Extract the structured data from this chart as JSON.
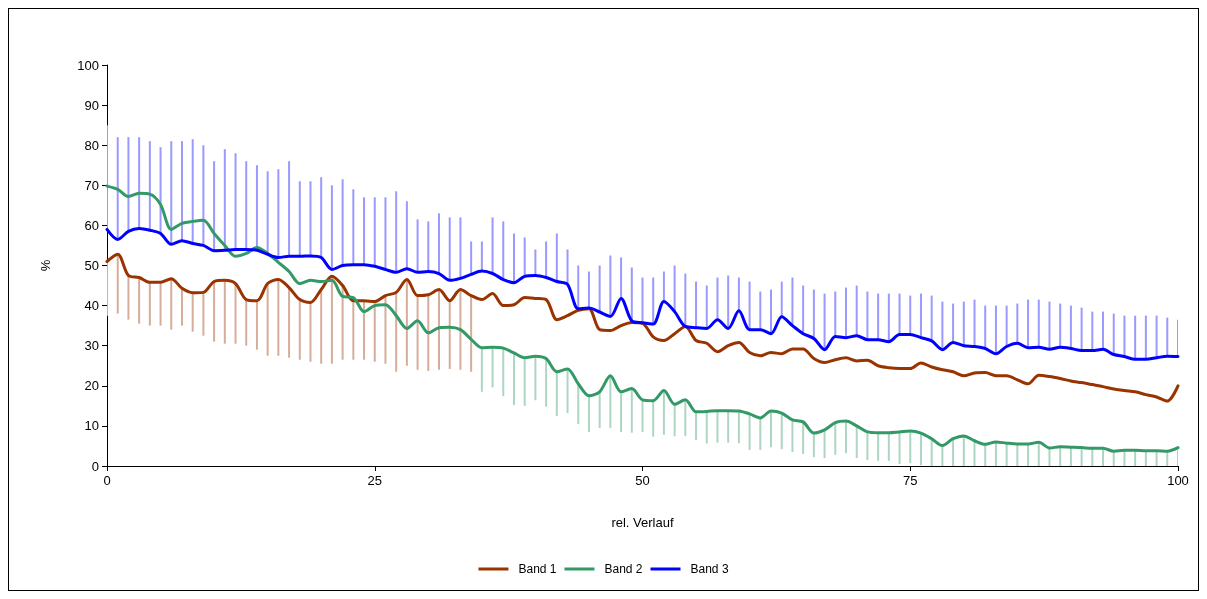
{
  "chart_data": {
    "type": "line",
    "xlabel": "rel. Verlauf",
    "ylabel": "%",
    "x": [
      0,
      1,
      2,
      3,
      4,
      5,
      6,
      7,
      8,
      9,
      10,
      11,
      12,
      13,
      14,
      15,
      16,
      17,
      18,
      19,
      20,
      21,
      22,
      23,
      24,
      25,
      26,
      27,
      28,
      29,
      30,
      31,
      32,
      33,
      34,
      35,
      36,
      37,
      38,
      39,
      40,
      41,
      42,
      43,
      44,
      45,
      46,
      47,
      48,
      49,
      50,
      51,
      52,
      53,
      54,
      55,
      56,
      57,
      58,
      59,
      60,
      61,
      62,
      63,
      64,
      65,
      66,
      67,
      68,
      69,
      70,
      71,
      72,
      73,
      74,
      75,
      76,
      77,
      78,
      79,
      80,
      81,
      82,
      83,
      84,
      85,
      86,
      87,
      88,
      89,
      90,
      91,
      92,
      93,
      94,
      95,
      96,
      97,
      98,
      99,
      100
    ],
    "series": [
      {
        "name": "Band 1",
        "color": "#993300",
        "values": [
          51,
          52.8,
          47.5,
          47,
          45.8,
          45.8,
          46.7,
          44.3,
          43.2,
          43.3,
          46,
          46.3,
          45.5,
          41.5,
          41.2,
          45.5,
          46.5,
          44.5,
          41.5,
          40.8,
          44,
          47.3,
          45,
          41.2,
          41.2,
          41,
          42.5,
          43.3,
          46.5,
          42.5,
          42.7,
          44,
          41.2,
          44,
          42.5,
          41.5,
          43,
          40,
          40.2,
          42,
          41.8,
          41.5,
          36.5,
          37.5,
          38.8,
          39.2,
          34,
          33.8,
          35,
          35.8,
          35.6,
          32.2,
          31.3,
          33,
          34.8,
          31.3,
          30.6,
          28.5,
          30,
          30.8,
          28.3,
          27.5,
          28.3,
          28,
          29.2,
          29.2,
          26.8,
          25.8,
          26.5,
          27,
          26.2,
          26.4,
          25,
          24.5,
          24.3,
          24.3,
          25.7,
          24.7,
          24,
          23.5,
          22.5,
          23.2,
          23.3,
          22.5,
          22.5,
          21.5,
          20.5,
          22.6,
          22.3,
          21.8,
          21.2,
          20.8,
          20.3,
          19.8,
          19.2,
          18.8,
          18.5,
          17.8,
          17.2,
          16.2,
          20
        ],
        "errors": [
          [
            37.5,
            51
          ],
          [
            38,
            52.8
          ],
          [
            36.5,
            47.5
          ],
          [
            35.5,
            47
          ],
          [
            35,
            45.8
          ],
          [
            35,
            45.8
          ],
          [
            34,
            46.7
          ],
          [
            35,
            44.3
          ],
          [
            33.5,
            43.2
          ],
          [
            32.5,
            43.3
          ],
          [
            31,
            46
          ],
          [
            30.5,
            46.3
          ],
          [
            30.5,
            45.5
          ],
          [
            30,
            41.5
          ],
          [
            29,
            41.2
          ],
          [
            27.5,
            45.5
          ],
          [
            27.5,
            46.5
          ],
          [
            27,
            44.5
          ],
          [
            26.5,
            41.5
          ],
          [
            26,
            40.8
          ],
          [
            25.5,
            44
          ],
          [
            25.5,
            47.3
          ],
          [
            26.5,
            45
          ],
          [
            26.5,
            41.2
          ],
          [
            26.5,
            41.2
          ],
          [
            26,
            41
          ],
          [
            25.5,
            42.5
          ],
          [
            23.5,
            43.3
          ],
          [
            25,
            46.5
          ],
          [
            24,
            42.5
          ],
          [
            23.7,
            42.7
          ],
          [
            24,
            44
          ],
          [
            24.2,
            41.2
          ],
          [
            24,
            44
          ],
          [
            23.5,
            42.5
          ],
          null,
          null,
          null,
          null,
          null,
          null,
          null,
          null,
          null,
          null,
          null,
          null,
          null,
          null,
          null,
          null,
          null,
          null,
          null,
          null,
          null,
          null,
          null,
          null,
          null,
          null,
          null,
          null,
          null,
          null,
          null,
          null,
          null,
          null,
          null,
          null,
          null,
          null,
          null,
          null,
          null,
          null,
          null,
          null,
          null,
          null,
          null,
          null,
          null,
          null,
          null,
          null,
          null,
          null,
          null,
          null,
          null,
          null,
          null,
          null,
          null,
          null,
          null,
          null,
          null,
          null
        ]
      },
      {
        "name": "Band 2",
        "color": "#339966",
        "values": [
          69.8,
          69,
          67.2,
          68,
          67.8,
          65.2,
          59,
          60.5,
          61,
          61.3,
          58,
          55,
          52.3,
          53,
          54.5,
          53,
          50.8,
          48.5,
          45.5,
          46.3,
          46,
          46.3,
          42.3,
          42,
          38.5,
          40,
          40.2,
          37.5,
          34.3,
          36.2,
          33.2,
          34.5,
          34.6,
          34,
          31.6,
          29.5,
          29.6,
          29.4,
          28.2,
          27,
          27.4,
          26.8,
          23.5,
          24.2,
          20.5,
          17.5,
          18.5,
          22.5,
          18.5,
          19.3,
          16.5,
          16.3,
          18.8,
          15.4,
          16.5,
          13.5,
          13.6,
          13.8,
          13.8,
          13.7,
          13,
          12,
          13.7,
          13.2,
          11.5,
          11,
          8.2,
          9,
          10.8,
          11.2,
          10,
          8.5,
          8.3,
          8.3,
          8.5,
          8.7,
          8.2,
          6.8,
          5.1,
          6.8,
          7.5,
          6.3,
          5.4,
          6,
          5.7,
          5.5,
          5.5,
          5.9,
          4.5,
          4.8,
          4.7,
          4.6,
          4.4,
          4.4,
          3.7,
          3.9,
          3.9,
          3.8,
          3.8,
          3.7,
          4.6
        ],
        "errors": [
          null,
          null,
          null,
          null,
          null,
          null,
          null,
          null,
          null,
          null,
          null,
          null,
          null,
          null,
          null,
          null,
          null,
          null,
          null,
          null,
          null,
          null,
          null,
          null,
          null,
          null,
          null,
          null,
          null,
          null,
          null,
          null,
          null,
          null,
          null,
          [
            18.5,
            29.5
          ],
          [
            19.6,
            29.6
          ],
          [
            17.4,
            29.4
          ],
          [
            15.2,
            28.2
          ],
          [
            15,
            27
          ],
          [
            16.4,
            27.4
          ],
          [
            14.8,
            26.8
          ],
          [
            12.5,
            23.5
          ],
          [
            13.2,
            24.2
          ],
          [
            10.5,
            20.5
          ],
          [
            8.5,
            17.5
          ],
          [
            9.5,
            18.5
          ],
          [
            9.5,
            22.5
          ],
          [
            8.5,
            18.5
          ],
          [
            8.3,
            19.3
          ],
          [
            8.5,
            16.5
          ],
          [
            7.3,
            16.3
          ],
          [
            7.8,
            18.8
          ],
          [
            7.4,
            15.4
          ],
          [
            7.5,
            16.5
          ],
          [
            6.5,
            13.5
          ],
          [
            5.6,
            13.6
          ],
          [
            5.8,
            13.8
          ],
          [
            5.8,
            13.8
          ],
          [
            5.7,
            13.7
          ],
          [
            4,
            13
          ],
          [
            4,
            12
          ],
          [
            4.7,
            13.7
          ],
          [
            4.2,
            13.2
          ],
          [
            3.5,
            11.5
          ],
          [
            3,
            11
          ],
          [
            2.2,
            8.2
          ],
          [
            2,
            9
          ],
          [
            2.8,
            10.8
          ],
          [
            3.2,
            11.2
          ],
          [
            2,
            10
          ],
          [
            1.5,
            8.5
          ],
          [
            1.3,
            8.3
          ],
          [
            1.3,
            8.3
          ],
          [
            0.5,
            8.5
          ],
          [
            0.7,
            8.7
          ],
          [
            0.2,
            8.2
          ],
          [
            0,
            6.8
          ],
          [
            0,
            5.1
          ],
          [
            0,
            6.8
          ],
          [
            0,
            7.5
          ],
          [
            0,
            6.3
          ],
          [
            0,
            5.4
          ],
          [
            0,
            6
          ],
          [
            0,
            5.7
          ],
          [
            0,
            5.5
          ],
          [
            0,
            5.5
          ],
          [
            0,
            5.9
          ],
          [
            0,
            4.5
          ],
          [
            0,
            4.8
          ],
          [
            0,
            4.7
          ],
          [
            0,
            4.6
          ],
          [
            0,
            4.4
          ],
          [
            0,
            4.4
          ],
          [
            0,
            3.7
          ],
          [
            0,
            3.9
          ],
          [
            0,
            3.9
          ],
          [
            0,
            3.8
          ],
          [
            0,
            3.8
          ],
          [
            0,
            3.7
          ],
          [
            0,
            4.6
          ]
        ]
      },
      {
        "name": "Band 3",
        "color": "#0000ff",
        "values": [
          59,
          56.5,
          58.5,
          59.2,
          58.8,
          58,
          55.3,
          56.2,
          55.5,
          55,
          53.7,
          53.8,
          54,
          54,
          53.8,
          52.8,
          52,
          52.3,
          52.3,
          52.4,
          52,
          49,
          50,
          50.2,
          50.2,
          49.8,
          49,
          48.3,
          49.2,
          48.3,
          48.5,
          48,
          46.3,
          46.8,
          47.8,
          48.6,
          48,
          46.5,
          45.7,
          47.3,
          47.5,
          47,
          46,
          45.3,
          39.2,
          39.4,
          38.4,
          37.3,
          41.8,
          36.2,
          35.7,
          35.4,
          41,
          38.5,
          34.8,
          34.5,
          34.3,
          36.5,
          34.3,
          38.7,
          34,
          34,
          33,
          37.2,
          35,
          33,
          31.8,
          29,
          32.3,
          32,
          32.5,
          31.5,
          31.5,
          31,
          32.8,
          32.8,
          32,
          31.2,
          29,
          30.8,
          30,
          29.8,
          29.3,
          28,
          29.8,
          30.6,
          29.5,
          29.6,
          29.1,
          29.6,
          29.3,
          28.8,
          28.8,
          29.1,
          27.8,
          27.3,
          26.6,
          26.6,
          27,
          27.4,
          27.3
        ],
        "errors": [
          [
            59,
            85
          ],
          [
            56.5,
            82
          ],
          [
            58.5,
            82
          ],
          [
            59.2,
            82
          ],
          [
            58.8,
            81
          ],
          [
            58,
            79.5
          ],
          [
            55.3,
            81
          ],
          [
            56.2,
            81
          ],
          [
            55.5,
            81.5
          ],
          [
            55,
            80
          ],
          [
            53.7,
            76
          ],
          [
            53.8,
            79
          ],
          [
            54,
            78
          ],
          [
            54,
            76
          ],
          [
            53.8,
            75
          ],
          [
            52.8,
            73.5
          ],
          [
            52,
            74
          ],
          [
            52.3,
            76
          ],
          [
            52.3,
            71
          ],
          [
            52.4,
            71
          ],
          [
            52,
            72
          ],
          [
            49,
            70
          ],
          [
            50,
            71.5
          ],
          [
            50.2,
            69
          ],
          [
            50.2,
            67
          ],
          [
            49.8,
            67
          ],
          [
            49,
            67
          ],
          [
            48.3,
            68.5
          ],
          [
            49.2,
            66
          ],
          [
            48.3,
            61.5
          ],
          [
            48.5,
            61
          ],
          [
            48,
            63
          ],
          [
            46.3,
            62
          ],
          [
            46.8,
            62
          ],
          [
            47.8,
            56
          ],
          [
            48.6,
            56
          ],
          [
            48,
            62
          ],
          [
            46.5,
            61
          ],
          [
            45.7,
            58
          ],
          [
            47.3,
            57
          ],
          [
            47.5,
            54
          ],
          [
            47,
            56
          ],
          [
            46,
            58
          ],
          [
            45.3,
            54
          ],
          [
            39.2,
            50
          ],
          [
            39.4,
            48.5
          ],
          [
            38.4,
            50
          ],
          [
            37.3,
            52.5
          ],
          [
            41.8,
            52
          ],
          [
            36.2,
            49.5
          ],
          [
            35.7,
            47
          ],
          [
            35.4,
            47
          ],
          [
            41,
            48.5
          ],
          [
            38.5,
            50
          ],
          [
            34.8,
            48
          ],
          [
            34.5,
            46
          ],
          [
            34.3,
            45
          ],
          [
            36.5,
            47
          ],
          [
            34.3,
            47.5
          ],
          [
            38.7,
            47
          ],
          [
            34,
            46
          ],
          [
            34,
            43.5
          ],
          [
            33,
            44
          ],
          [
            37.2,
            46
          ],
          [
            35,
            47
          ],
          [
            33,
            45
          ],
          [
            31.8,
            44
          ],
          [
            29,
            43
          ],
          [
            32.3,
            43.5
          ],
          [
            32,
            44.5
          ],
          [
            32.5,
            45
          ],
          [
            31.5,
            43.5
          ],
          [
            31.5,
            43
          ],
          [
            31,
            43
          ],
          [
            32.8,
            43
          ],
          [
            32.8,
            42.5
          ],
          [
            32,
            43
          ],
          [
            31.2,
            42.5
          ],
          [
            29,
            41
          ],
          [
            30.8,
            40.5
          ],
          [
            30,
            41
          ],
          [
            29.8,
            41.5
          ],
          [
            29.3,
            40
          ],
          [
            28,
            40
          ],
          [
            29.8,
            40
          ],
          [
            30.6,
            40.5
          ],
          [
            29.5,
            41.5
          ],
          [
            29.6,
            41.5
          ],
          [
            29.1,
            41
          ],
          [
            29.6,
            40.5
          ],
          [
            29.3,
            40
          ],
          [
            28.8,
            39.5
          ],
          [
            28.8,
            38.5
          ],
          [
            29.1,
            38.5
          ],
          [
            27.8,
            38
          ],
          [
            27.3,
            37.5
          ],
          [
            26.6,
            37.5
          ],
          [
            26.6,
            37.5
          ],
          [
            27,
            37.5
          ],
          [
            27.4,
            37
          ],
          [
            27.3,
            36.5
          ]
        ]
      }
    ],
    "xlim": [
      0,
      100
    ],
    "xticks": [
      0,
      25,
      50,
      75,
      100
    ],
    "ylim": [
      0,
      100
    ],
    "yticks": [
      0,
      10,
      20,
      30,
      40,
      50,
      60,
      70,
      80,
      90,
      100
    ],
    "grid": false,
    "legend": "bottom",
    "marker": "none",
    "line_style": "solid"
  }
}
